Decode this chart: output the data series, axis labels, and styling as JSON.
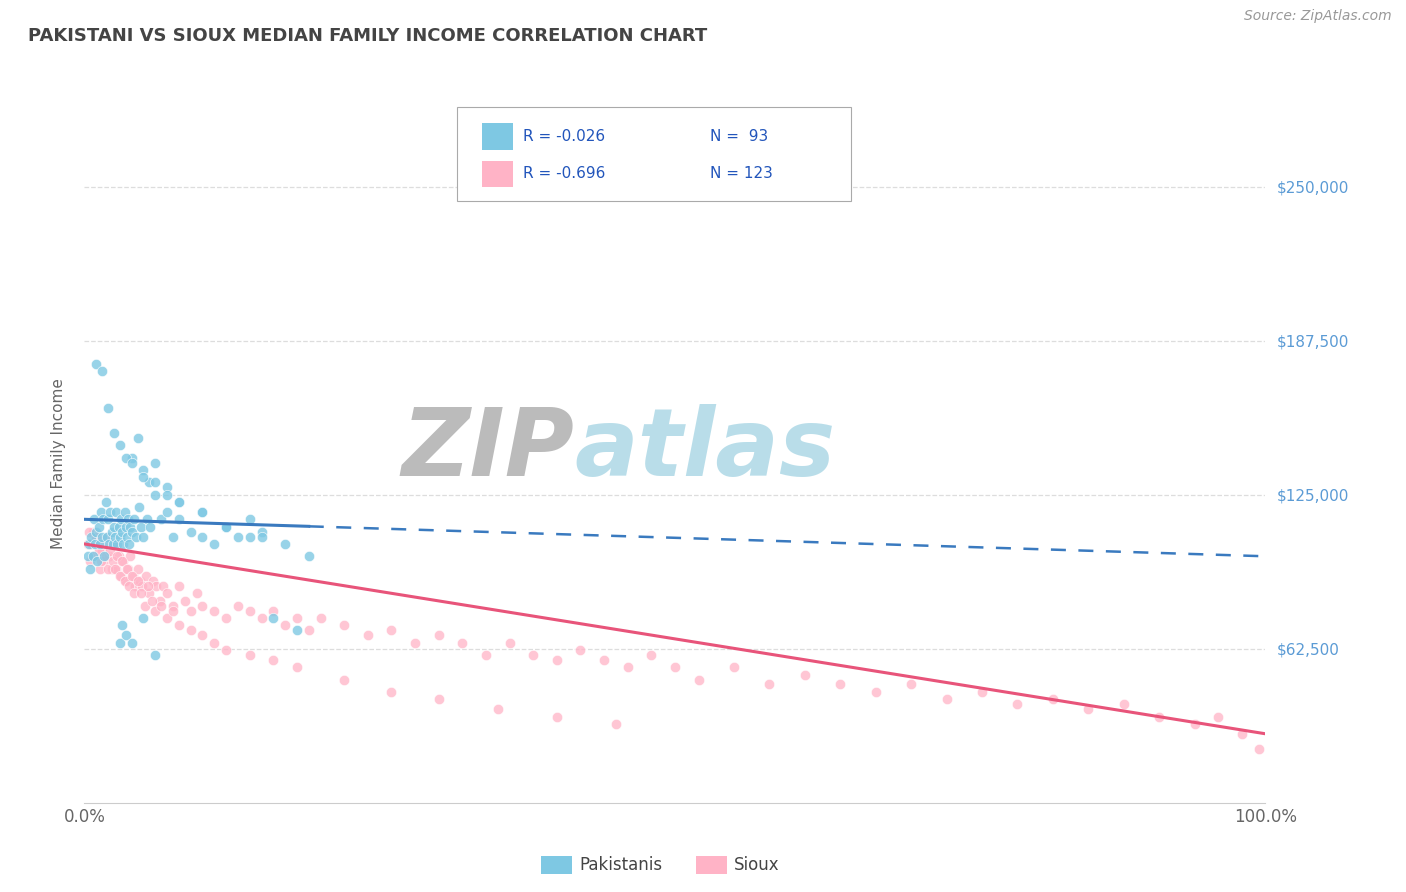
{
  "title": "PAKISTANI VS SIOUX MEDIAN FAMILY INCOME CORRELATION CHART",
  "source_text": "Source: ZipAtlas.com",
  "ylabel": "Median Family Income",
  "xlim": [
    0.0,
    100.0
  ],
  "ylim": [
    0,
    275000
  ],
  "yticks": [
    0,
    62500,
    125000,
    187500,
    250000
  ],
  "ytick_labels": [
    "",
    "$62,500",
    "$125,000",
    "$187,500",
    "$250,000"
  ],
  "blue_color": "#7ec8e3",
  "pink_color": "#ffb3c6",
  "blue_line_color": "#3a7abf",
  "pink_line_color": "#e8547a",
  "title_color": "#555555",
  "grid_color": "#cccccc",
  "watermark_zip_color": "#c8c8c8",
  "watermark_atlas_color": "#add8e6",
  "legend_label1": "Pakistanis",
  "legend_label2": "Sioux",
  "pakistani_x": [
    0.3,
    0.4,
    0.5,
    0.6,
    0.7,
    0.8,
    0.9,
    1.0,
    1.1,
    1.2,
    1.3,
    1.4,
    1.5,
    1.6,
    1.7,
    1.8,
    1.9,
    2.0,
    2.1,
    2.2,
    2.3,
    2.4,
    2.5,
    2.6,
    2.7,
    2.8,
    2.9,
    3.0,
    3.1,
    3.2,
    3.3,
    3.4,
    3.5,
    3.6,
    3.7,
    3.8,
    3.9,
    4.0,
    4.2,
    4.4,
    4.6,
    4.8,
    5.0,
    5.3,
    5.6,
    6.0,
    6.5,
    7.0,
    7.5,
    8.0,
    9.0,
    10.0,
    11.0,
    12.0,
    13.0,
    14.0,
    15.0,
    17.0,
    19.0,
    4.0,
    4.5,
    5.0,
    5.5,
    6.0,
    7.0,
    8.0,
    10.0,
    12.0,
    15.0,
    1.0,
    1.5,
    2.0,
    2.5,
    3.0,
    3.5,
    4.0,
    5.0,
    6.0,
    7.0,
    8.0,
    10.0,
    12.0,
    14.0,
    16.0,
    18.0,
    3.0,
    3.2,
    3.5,
    4.0,
    5.0,
    6.0
  ],
  "pakistani_y": [
    100000,
    105000,
    95000,
    108000,
    100000,
    115000,
    105000,
    110000,
    98000,
    112000,
    105000,
    118000,
    108000,
    115000,
    100000,
    122000,
    108000,
    115000,
    105000,
    118000,
    110000,
    105000,
    112000,
    108000,
    118000,
    105000,
    112000,
    108000,
    115000,
    110000,
    105000,
    118000,
    112000,
    108000,
    115000,
    105000,
    112000,
    110000,
    115000,
    108000,
    120000,
    112000,
    108000,
    115000,
    112000,
    125000,
    115000,
    118000,
    108000,
    115000,
    110000,
    108000,
    105000,
    112000,
    108000,
    115000,
    110000,
    105000,
    100000,
    140000,
    148000,
    135000,
    130000,
    138000,
    128000,
    122000,
    118000,
    112000,
    108000,
    178000,
    175000,
    160000,
    150000,
    145000,
    140000,
    138000,
    132000,
    130000,
    125000,
    122000,
    118000,
    112000,
    108000,
    75000,
    70000,
    65000,
    72000,
    68000,
    65000,
    75000,
    60000
  ],
  "sioux_x": [
    0.3,
    0.5,
    0.7,
    0.9,
    1.1,
    1.3,
    1.5,
    1.7,
    1.9,
    2.1,
    2.3,
    2.5,
    2.7,
    2.9,
    3.1,
    3.3,
    3.5,
    3.7,
    3.9,
    4.1,
    4.3,
    4.5,
    4.7,
    4.9,
    5.2,
    5.5,
    5.8,
    6.1,
    6.4,
    6.7,
    7.0,
    7.5,
    8.0,
    8.5,
    9.0,
    9.5,
    10.0,
    11.0,
    12.0,
    13.0,
    14.0,
    15.0,
    16.0,
    17.0,
    18.0,
    19.0,
    20.0,
    22.0,
    24.0,
    26.0,
    28.0,
    30.0,
    32.0,
    34.0,
    36.0,
    38.0,
    40.0,
    42.0,
    44.0,
    46.0,
    48.0,
    50.0,
    52.0,
    55.0,
    58.0,
    61.0,
    64.0,
    67.0,
    70.0,
    73.0,
    76.0,
    79.0,
    82.0,
    85.0,
    88.0,
    91.0,
    94.0,
    96.0,
    98.0,
    99.5,
    0.4,
    0.6,
    0.8,
    1.0,
    1.2,
    1.4,
    1.6,
    1.8,
    2.0,
    2.2,
    2.4,
    2.6,
    2.8,
    3.0,
    3.2,
    3.4,
    3.6,
    3.8,
    4.0,
    4.2,
    4.5,
    4.8,
    5.1,
    5.4,
    5.7,
    6.0,
    6.5,
    7.0,
    7.5,
    8.0,
    9.0,
    10.0,
    11.0,
    12.0,
    14.0,
    16.0,
    18.0,
    22.0,
    26.0,
    30.0,
    35.0,
    40.0,
    45.0
  ],
  "sioux_y": [
    105000,
    98000,
    110000,
    100000,
    108000,
    95000,
    102000,
    98000,
    108000,
    100000,
    95000,
    105000,
    95000,
    100000,
    92000,
    98000,
    90000,
    95000,
    100000,
    92000,
    88000,
    95000,
    90000,
    88000,
    92000,
    85000,
    90000,
    88000,
    82000,
    88000,
    85000,
    80000,
    88000,
    82000,
    78000,
    85000,
    80000,
    78000,
    75000,
    80000,
    78000,
    75000,
    78000,
    72000,
    75000,
    70000,
    75000,
    72000,
    68000,
    70000,
    65000,
    68000,
    65000,
    60000,
    65000,
    60000,
    58000,
    62000,
    58000,
    55000,
    60000,
    55000,
    50000,
    55000,
    48000,
    52000,
    48000,
    45000,
    48000,
    42000,
    45000,
    40000,
    42000,
    38000,
    40000,
    35000,
    32000,
    35000,
    28000,
    22000,
    110000,
    105000,
    100000,
    108000,
    102000,
    98000,
    105000,
    100000,
    95000,
    102000,
    98000,
    95000,
    100000,
    92000,
    98000,
    90000,
    95000,
    88000,
    92000,
    85000,
    90000,
    85000,
    80000,
    88000,
    82000,
    78000,
    80000,
    75000,
    78000,
    72000,
    70000,
    68000,
    65000,
    62000,
    60000,
    58000,
    55000,
    50000,
    45000,
    42000,
    38000,
    35000,
    32000
  ]
}
